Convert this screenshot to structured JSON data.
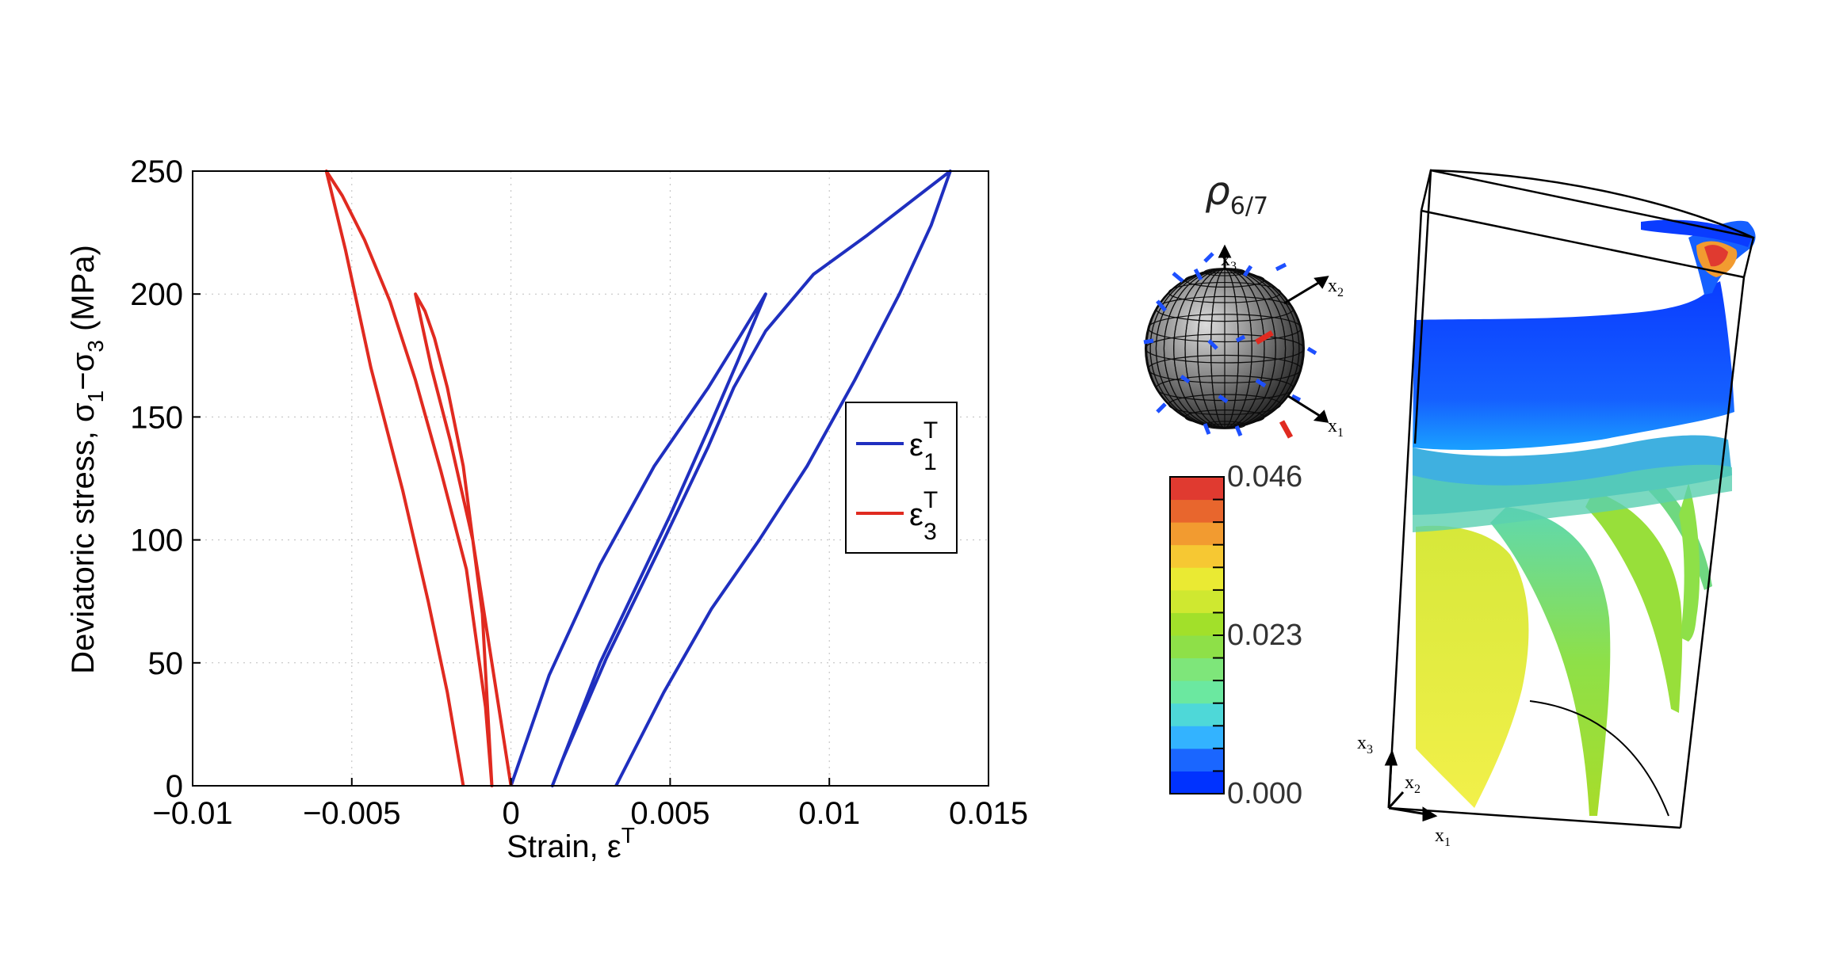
{
  "chart_data": {
    "type": "line",
    "xlabel": "Strain, ε",
    "xlabel_sup": "T",
    "ylabel_parts": [
      "Deviatoric stress, σ",
      "1",
      "−σ",
      "3",
      " (MPa)"
    ],
    "xlim": [
      -0.01,
      0.015
    ],
    "ylim": [
      0,
      250
    ],
    "xticks": [
      -0.01,
      -0.005,
      0,
      0.005,
      0.01,
      0.015
    ],
    "xtick_labels": [
      "−0.01",
      "−0.005",
      "0",
      "0.005",
      "0.01",
      "0.015"
    ],
    "yticks": [
      0,
      50,
      100,
      150,
      200,
      250
    ],
    "ytick_labels": [
      "0",
      "50",
      "100",
      "150",
      "200",
      "250"
    ],
    "grid": true,
    "legend_position": "right",
    "series": [
      {
        "name_base": "ε",
        "name_sup": "T",
        "name_sub": "1",
        "color": "#1f2fbf",
        "x": [
          0,
          0.0012,
          0.0028,
          0.0045,
          0.0062,
          0.0072,
          0.008,
          0.0071,
          0.0062,
          0.005,
          0.0028,
          0.0013,
          0.0016,
          0.003,
          0.0048,
          0.0062,
          0.007,
          0.008,
          0.0095,
          0.0112,
          0.0128,
          0.0138,
          0.0132,
          0.0122,
          0.0108,
          0.0093,
          0.0078,
          0.0063,
          0.0048,
          0.0033
        ],
        "y": [
          0,
          45,
          90,
          130,
          162,
          183,
          200,
          172,
          145,
          110,
          50,
          0,
          10,
          52,
          100,
          138,
          162,
          185,
          208,
          224,
          240,
          250,
          228,
          200,
          165,
          130,
          100,
          72,
          38,
          0
        ]
      },
      {
        "name_base": "ε",
        "name_sup": "T",
        "name_sub": "3",
        "color": "#e02a20",
        "x": [
          0,
          -0.0006,
          -0.0012,
          -0.0019,
          -0.0025,
          -0.003,
          -0.0027,
          -0.0024,
          -0.002,
          -0.0015,
          -0.0009,
          -0.0006,
          -0.0008,
          -0.0014,
          -0.0022,
          -0.003,
          -0.0038,
          -0.0046,
          -0.0053,
          -0.0058,
          -0.0052,
          -0.0044,
          -0.0034,
          -0.0026,
          -0.002,
          -0.0015
        ],
        "y": [
          0,
          50,
          100,
          140,
          170,
          200,
          193,
          182,
          162,
          130,
          70,
          0,
          32,
          88,
          128,
          165,
          197,
          222,
          240,
          250,
          218,
          170,
          120,
          75,
          38,
          0
        ]
      }
    ]
  },
  "sphere_panel": {
    "title": "ρ",
    "title_sub": "6/7",
    "axis_x1": "x",
    "axis_x1_sub": "1",
    "axis_x2": "x",
    "axis_x2_sub": "2",
    "axis_x3": "x",
    "axis_x3_sub": "3"
  },
  "colorbar": {
    "labels": [
      "0.046",
      "0.023",
      "0.000"
    ],
    "colors": [
      "#0032ff",
      "#1a66ff",
      "#33b3ff",
      "#4ed8d8",
      "#6be8a0",
      "#7ee67a",
      "#8ee048",
      "#a2e02a",
      "#cfe830",
      "#eaea33",
      "#f6c833",
      "#f29b30",
      "#e8662d",
      "#e03a30"
    ]
  },
  "volume_panel": {
    "axis_x1": "x",
    "axis_x1_sub": "1",
    "axis_x2": "x",
    "axis_x2_sub": "2",
    "axis_x3": "x",
    "axis_x3_sub": "3"
  }
}
